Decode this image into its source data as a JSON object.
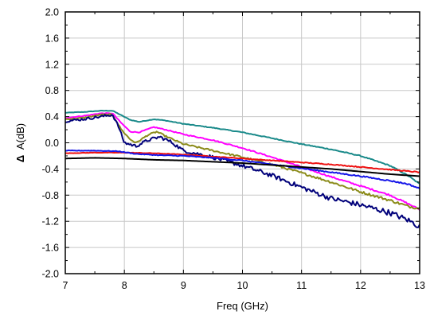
{
  "chart_data": {
    "type": "line",
    "title": "",
    "xlabel": "Freq (GHz)",
    "ylabel_prefix": "Δ",
    "ylabel_main": "A(dB)",
    "xlim": [
      7,
      13
    ],
    "ylim": [
      -2.0,
      2.0
    ],
    "xticks": [
      7,
      8,
      9,
      10,
      11,
      12,
      13
    ],
    "xtick_labels": [
      "7",
      "8",
      "9",
      "10",
      "11",
      "12",
      "13"
    ],
    "yticks": [
      -2.0,
      -1.6,
      -1.2,
      -0.8,
      -0.4,
      0.0,
      0.4,
      0.8,
      1.2,
      1.6,
      2.0
    ],
    "ytick_labels": [
      "-2.0",
      "-1.6",
      "-1.2",
      "-0.8",
      "-0.4",
      "0.0",
      "0.4",
      "0.8",
      "1.2",
      "1.6",
      "2.0"
    ],
    "grid": true,
    "legend": "none",
    "series": [
      {
        "color": "#1a8a8a",
        "noise": 0.008,
        "x": [
          7.0,
          7.3,
          7.6,
          7.8,
          7.95,
          8.1,
          8.25,
          8.5,
          8.7,
          9.0,
          9.5,
          10.0,
          10.5,
          11.0,
          11.5,
          12.0,
          12.5,
          12.8,
          13.0
        ],
        "y": [
          0.46,
          0.47,
          0.49,
          0.49,
          0.42,
          0.35,
          0.32,
          0.36,
          0.34,
          0.29,
          0.23,
          0.16,
          0.07,
          -0.02,
          -0.1,
          -0.2,
          -0.35,
          -0.5,
          -0.63
        ]
      },
      {
        "color": "#ff00ff",
        "noise": 0.012,
        "x": [
          7.0,
          7.3,
          7.6,
          7.8,
          7.95,
          8.1,
          8.25,
          8.5,
          8.7,
          9.0,
          9.5,
          10.0,
          10.5,
          11.0,
          11.5,
          12.0,
          12.5,
          12.8,
          13.0
        ],
        "y": [
          0.38,
          0.41,
          0.45,
          0.45,
          0.3,
          0.17,
          0.16,
          0.24,
          0.2,
          0.13,
          0.04,
          -0.08,
          -0.22,
          -0.37,
          -0.52,
          -0.66,
          -0.8,
          -0.93,
          -1.02
        ]
      },
      {
        "color": "#8b8b1a",
        "noise": 0.02,
        "x": [
          7.0,
          7.3,
          7.6,
          7.8,
          7.95,
          8.1,
          8.2,
          8.4,
          8.55,
          8.7,
          9.0,
          9.5,
          10.0,
          10.5,
          11.0,
          11.5,
          12.0,
          12.5,
          12.8,
          13.0
        ],
        "y": [
          0.36,
          0.38,
          0.43,
          0.43,
          0.2,
          0.05,
          0.0,
          0.12,
          0.17,
          0.1,
          -0.02,
          -0.12,
          -0.22,
          -0.33,
          -0.46,
          -0.6,
          -0.75,
          -0.88,
          -0.97,
          -1.0
        ]
      },
      {
        "color": "#00007a",
        "noise": 0.045,
        "x": [
          7.0,
          7.3,
          7.6,
          7.8,
          7.9,
          8.0,
          8.2,
          8.4,
          8.6,
          8.8,
          9.0,
          9.5,
          10.0,
          10.5,
          11.0,
          11.5,
          12.0,
          12.5,
          12.8,
          13.0
        ],
        "y": [
          0.33,
          0.36,
          0.4,
          0.43,
          0.25,
          0.0,
          -0.05,
          0.04,
          0.09,
          0.01,
          -0.12,
          -0.22,
          -0.35,
          -0.5,
          -0.68,
          -0.85,
          -0.95,
          -1.07,
          -1.18,
          -1.28
        ]
      },
      {
        "color": "#ee1111",
        "noise": 0.007,
        "x": [
          7.0,
          7.5,
          8.0,
          8.5,
          9.0,
          9.5,
          10.0,
          10.5,
          11.0,
          11.5,
          12.0,
          12.5,
          13.0
        ],
        "y": [
          -0.16,
          -0.15,
          -0.15,
          -0.16,
          -0.18,
          -0.21,
          -0.24,
          -0.27,
          -0.3,
          -0.33,
          -0.37,
          -0.41,
          -0.45
        ]
      },
      {
        "color": "#1515e8",
        "noise": 0.01,
        "x": [
          7.0,
          7.5,
          7.9,
          8.2,
          8.6,
          9.0,
          9.5,
          10.0,
          10.5,
          11.0,
          11.5,
          12.0,
          12.5,
          12.8,
          13.0
        ],
        "y": [
          -0.12,
          -0.12,
          -0.13,
          -0.17,
          -0.19,
          -0.2,
          -0.23,
          -0.27,
          -0.33,
          -0.39,
          -0.45,
          -0.51,
          -0.58,
          -0.63,
          -0.7
        ]
      },
      {
        "color": "#000000",
        "noise": 0.0,
        "x": [
          7.0,
          7.5,
          8.0,
          8.5,
          9.0,
          9.5,
          10.0,
          10.5,
          11.0,
          11.5,
          12.0,
          12.5,
          13.0
        ],
        "y": [
          -0.24,
          -0.23,
          -0.24,
          -0.26,
          -0.27,
          -0.29,
          -0.31,
          -0.34,
          -0.37,
          -0.4,
          -0.44,
          -0.48,
          -0.51
        ]
      }
    ]
  }
}
